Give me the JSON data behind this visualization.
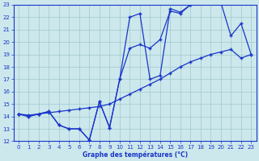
{
  "xlabel": "Graphe des températures (°C)",
  "background_color": "#cce8ec",
  "line_color": "#1a35c8",
  "grid_color": "#a0c8cc",
  "xlim": [
    -0.5,
    23.5
  ],
  "ylim": [
    12,
    23
  ],
  "xticks": [
    0,
    1,
    2,
    3,
    4,
    5,
    6,
    7,
    8,
    9,
    10,
    11,
    12,
    13,
    14,
    15,
    16,
    17,
    18,
    19,
    20,
    21,
    22,
    23
  ],
  "yticks": [
    12,
    13,
    14,
    15,
    16,
    17,
    18,
    19,
    20,
    21,
    22,
    23
  ],
  "line1_x": [
    0,
    1,
    2,
    3,
    4,
    5,
    6,
    7,
    8,
    9,
    10,
    11,
    12,
    13,
    14,
    15,
    16,
    17,
    18,
    19,
    20,
    21,
    22,
    23
  ],
  "line1_y": [
    14.2,
    14.0,
    14.2,
    14.4,
    13.3,
    13.0,
    13.0,
    12.1,
    15.2,
    13.1,
    17.0,
    22.0,
    22.3,
    17.0,
    17.3,
    22.7,
    22.4,
    23.0,
    23.1,
    23.2,
    23.2,
    20.5,
    21.5,
    19.0
  ],
  "line2_x": [
    0,
    1,
    2,
    3,
    4,
    5,
    6,
    7,
    8,
    9,
    10,
    11,
    12,
    13,
    14,
    15,
    16,
    17,
    18,
    19,
    20
  ],
  "line2_y": [
    14.2,
    14.0,
    14.2,
    14.4,
    13.3,
    13.0,
    13.0,
    12.1,
    15.2,
    13.1,
    17.0,
    19.5,
    19.8,
    19.5,
    20.2,
    22.5,
    22.3,
    23.0,
    23.1,
    23.2,
    23.2
  ],
  "line3_x": [
    0,
    1,
    2,
    3,
    4,
    5,
    6,
    7,
    8,
    9,
    10,
    11,
    12,
    13,
    14,
    15,
    16,
    17,
    18,
    19,
    20,
    21,
    22,
    23
  ],
  "line3_y": [
    14.2,
    14.1,
    14.2,
    14.3,
    14.4,
    14.5,
    14.6,
    14.7,
    14.8,
    15.0,
    15.4,
    15.8,
    16.2,
    16.6,
    17.0,
    17.5,
    18.0,
    18.4,
    18.7,
    19.0,
    19.2,
    19.4,
    18.7,
    19.0
  ]
}
